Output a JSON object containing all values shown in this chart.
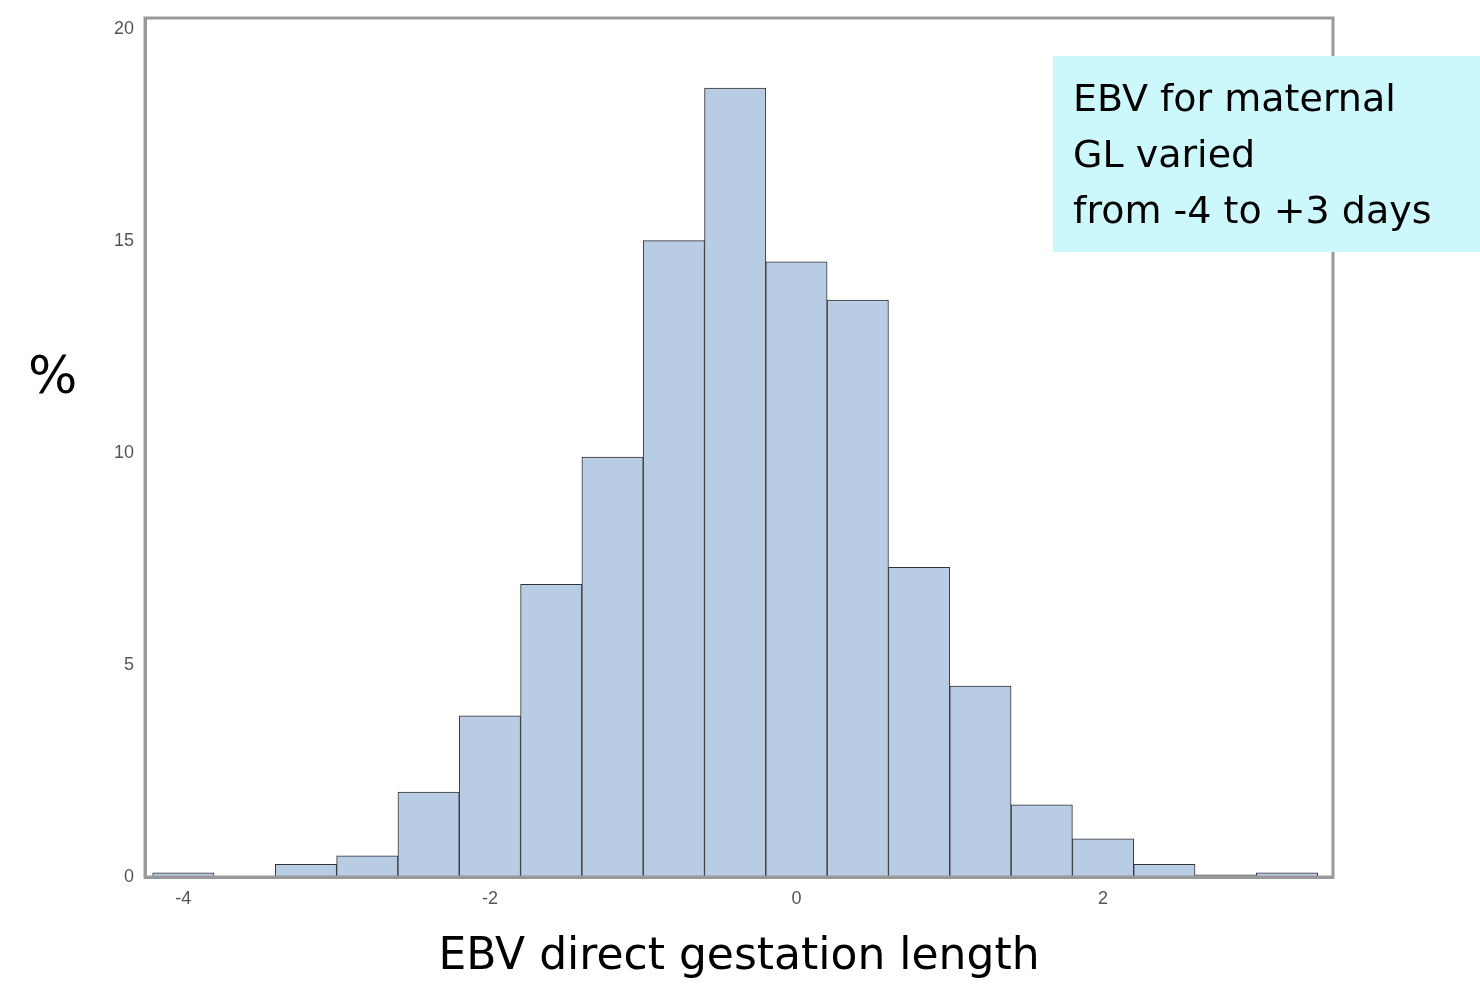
{
  "chart_data": {
    "type": "histogram",
    "xlabel": "EBV direct gestation length",
    "ylabel": "%",
    "bins": [
      -4.2,
      -3.8,
      -3.4,
      -3.0,
      -2.6,
      -2.2,
      -1.8,
      -1.4,
      -1.0,
      -0.6,
      -0.2,
      0.2,
      0.6,
      1.0,
      1.4,
      1.8,
      2.2,
      2.6,
      3.0,
      3.4
    ],
    "values": [
      0.1,
      0,
      0.3,
      0.5,
      2.0,
      3.8,
      6.9,
      9.9,
      15.0,
      18.6,
      14.5,
      13.6,
      7.3,
      4.5,
      1.7,
      0.9,
      0.3,
      0.05,
      0.1
    ],
    "color": "#b8cce4",
    "xlim": [
      -4.25,
      3.5
    ],
    "xticks": [
      -4,
      -2,
      0,
      2
    ],
    "ylim": [
      0,
      20.25
    ],
    "yticks": [
      0,
      5,
      10,
      15,
      20
    ],
    "grid": false,
    "annotations": [
      "EBV for maternal\nGL varied\nfrom -4 to +3 days"
    ]
  }
}
